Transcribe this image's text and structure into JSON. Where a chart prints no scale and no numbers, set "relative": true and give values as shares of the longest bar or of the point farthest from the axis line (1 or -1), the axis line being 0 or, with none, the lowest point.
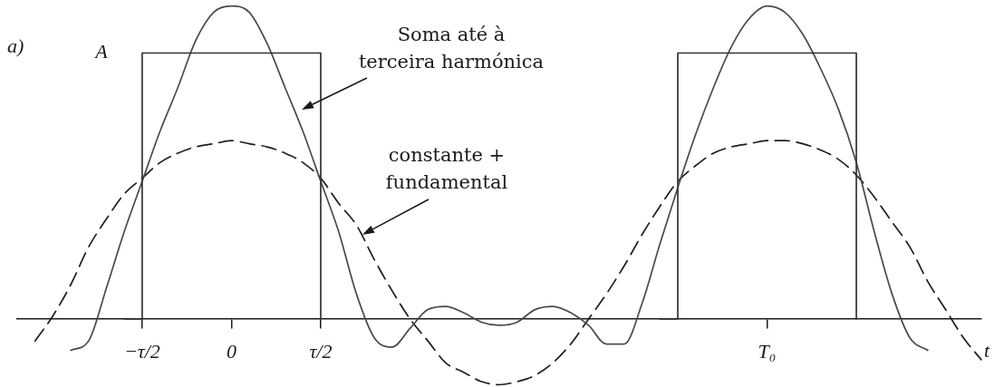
{
  "chart_data": {
    "type": "line",
    "relative": true,
    "xlabel": "t",
    "categories": [
      null,
      null,
      null,
      null,
      null,
      null,
      null,
      "−τ/2",
      null,
      null,
      null,
      null,
      "0",
      null,
      null,
      null,
      null,
      "τ/2",
      null,
      null,
      null,
      null,
      null,
      null,
      null,
      null,
      null,
      null,
      null,
      null,
      null,
      null,
      null,
      null,
      null,
      null,
      null,
      null,
      null,
      null,
      null,
      null,
      "T₀",
      null,
      null,
      null,
      null,
      null,
      null,
      null,
      null,
      null,
      null,
      null,
      null
    ],
    "series": [
      {
        "type": "step",
        "color": "#333333",
        "line_style": "solid",
        "values": [
          null,
          null,
          null,
          null,
          null,
          null,
          0,
          0.85,
          0.85,
          0.85,
          0.85,
          0.85,
          0.85,
          0.85,
          0.85,
          0.85,
          0.85,
          0,
          null,
          null,
          null,
          null,
          null,
          null,
          null,
          null,
          null,
          null,
          null,
          null,
          null,
          null,
          null,
          null,
          null,
          null,
          0,
          0.85,
          0.85,
          0.85,
          0.85,
          0.85,
          0.85,
          0.85,
          0.85,
          0.85,
          0.85,
          0,
          null,
          null,
          null,
          null,
          null,
          null,
          null
        ]
      },
      {
        "color": "#4a4a4a",
        "line_style": "solid",
        "values": [
          null,
          null,
          null,
          -0.1,
          -0.07,
          0.1,
          0.28,
          0.44,
          0.6,
          0.74,
          0.89,
          0.98,
          1,
          0.98,
          0.88,
          0.74,
          0.6,
          0.44,
          0.28,
          0.08,
          -0.06,
          -0.09,
          -0.03,
          0.03,
          0.04,
          0.02,
          -0.01,
          -0.02,
          -0.01,
          0.03,
          0.04,
          0.02,
          -0.02,
          -0.08,
          -0.08,
          0.05,
          0.24,
          0.42,
          0.59,
          0.74,
          0.87,
          0.96,
          1,
          0.98,
          0.91,
          0.8,
          0.67,
          0.5,
          0.28,
          0.08,
          -0.06,
          -0.1,
          null,
          null,
          null
        ]
      },
      {
        "color": "#1e1e1e",
        "line_style": "dashed",
        "values": [
          null,
          -0.07,
          0.01,
          0.11,
          0.23,
          0.32,
          0.4,
          0.45,
          0.5,
          0.53,
          0.55,
          0.56,
          0.57,
          0.56,
          0.55,
          0.53,
          0.5,
          0.45,
          0.37,
          0.3,
          0.19,
          0.09,
          0,
          -0.07,
          -0.14,
          -0.17,
          -0.2,
          -0.21,
          -0.2,
          -0.18,
          -0.14,
          -0.08,
          0,
          0.08,
          0.17,
          0.27,
          0.36,
          0.44,
          0.49,
          0.53,
          0.55,
          0.56,
          0.57,
          0.57,
          0.56,
          0.54,
          0.51,
          0.46,
          0.39,
          0.31,
          0.23,
          0.12,
          0.03,
          -0.06,
          -0.13
        ]
      }
    ],
    "annotations": [
      "a)",
      "A",
      "Soma até à\nterceira harmónica",
      "constante +\nfundamental"
    ]
  }
}
